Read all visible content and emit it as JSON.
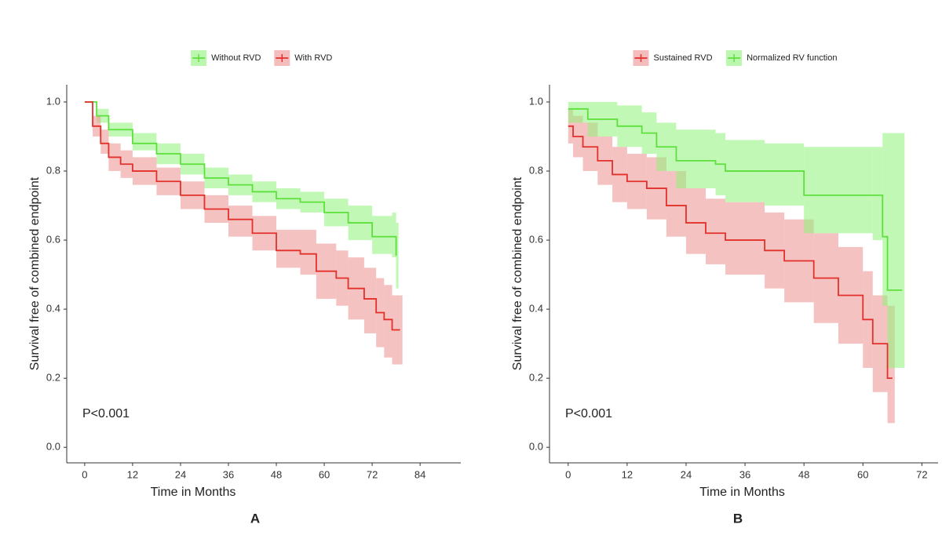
{
  "chart_data": [
    {
      "type": "step",
      "panel_label": "A",
      "x_label": "Time in Months",
      "y_label": "Survival free of combined endpoint",
      "annotation": "P<0.001",
      "legend": "top",
      "xlim": [
        -4.5,
        94.2
      ],
      "ylim": [
        -0.045,
        1.05
      ],
      "xticks": [
        0,
        12,
        24,
        36,
        48,
        60,
        72,
        84
      ],
      "yticks": [
        {
          "value": 0,
          "label": "0.0"
        },
        {
          "value": 0.2,
          "label": "0.2"
        },
        {
          "value": 0.4,
          "label": "0.4"
        },
        {
          "value": 0.6,
          "label": "0.6"
        },
        {
          "value": 0.8,
          "label": "0.8"
        },
        {
          "value": 1,
          "label": "1.0"
        }
      ],
      "series": [
        {
          "name": "Without RVD",
          "color": "#5ee03c",
          "band_color": "#8ff27a",
          "x": [
            0,
            3,
            6,
            12,
            18,
            24,
            30,
            36,
            42,
            48,
            54,
            60,
            66,
            72,
            77,
            78
          ],
          "values": [
            1,
            0.96,
            0.92,
            0.88,
            0.85,
            0.82,
            0.78,
            0.76,
            0.74,
            0.72,
            0.71,
            0.68,
            0.65,
            0.61,
            0.61,
            0.555
          ],
          "lower": [
            1,
            0.94,
            0.9,
            0.86,
            0.82,
            0.79,
            0.75,
            0.73,
            0.71,
            0.69,
            0.68,
            0.64,
            0.6,
            0.56,
            0.55,
            0.46
          ],
          "upper": [
            1,
            0.98,
            0.94,
            0.91,
            0.88,
            0.85,
            0.81,
            0.79,
            0.77,
            0.75,
            0.74,
            0.72,
            0.7,
            0.67,
            0.68,
            0.65
          ]
        },
        {
          "name": "With RVD",
          "color": "#e3302a",
          "band_color": "#ec8f8f",
          "x": [
            0,
            2,
            4,
            6,
            9,
            12,
            18,
            24,
            30,
            36,
            42,
            48,
            54,
            58,
            63,
            66,
            70,
            73,
            75,
            77,
            79
          ],
          "values": [
            1,
            0.93,
            0.88,
            0.84,
            0.82,
            0.8,
            0.77,
            0.73,
            0.69,
            0.66,
            0.62,
            0.57,
            0.56,
            0.51,
            0.49,
            0.46,
            0.43,
            0.39,
            0.37,
            0.34,
            0.34
          ],
          "lower": [
            1,
            0.9,
            0.85,
            0.8,
            0.78,
            0.76,
            0.73,
            0.69,
            0.65,
            0.61,
            0.57,
            0.52,
            0.5,
            0.43,
            0.41,
            0.37,
            0.33,
            0.29,
            0.26,
            0.24,
            0.24
          ],
          "upper": [
            1,
            0.96,
            0.92,
            0.88,
            0.86,
            0.84,
            0.81,
            0.77,
            0.73,
            0.7,
            0.67,
            0.63,
            0.63,
            0.59,
            0.57,
            0.55,
            0.52,
            0.49,
            0.47,
            0.44,
            0.44
          ]
        }
      ]
    },
    {
      "type": "step",
      "panel_label": "B",
      "x_label": "Time in Months",
      "y_label": "Survival free of combined endpoint",
      "annotation": "P<0.001",
      "legend": "top",
      "xlim": [
        -3.8,
        75.3
      ],
      "ylim": [
        -0.045,
        1.05
      ],
      "xticks": [
        0,
        12,
        24,
        36,
        48,
        60,
        72
      ],
      "yticks": [
        {
          "value": 0,
          "label": "0.0"
        },
        {
          "value": 0.2,
          "label": "0.2"
        },
        {
          "value": 0.4,
          "label": "0.4"
        },
        {
          "value": 0.6,
          "label": "0.6"
        },
        {
          "value": 0.8,
          "label": "0.8"
        },
        {
          "value": 1,
          "label": "1.0"
        }
      ],
      "series": [
        {
          "name": "Sustained RVD",
          "color": "#e3302a",
          "band_color": "#ec8f8f",
          "x": [
            0,
            1,
            3,
            6,
            9,
            12,
            16,
            20,
            24,
            28,
            32,
            40,
            44,
            50,
            55,
            60,
            62,
            65,
            66
          ],
          "values": [
            0.93,
            0.9,
            0.87,
            0.83,
            0.79,
            0.77,
            0.75,
            0.7,
            0.65,
            0.62,
            0.6,
            0.57,
            0.54,
            0.49,
            0.44,
            0.37,
            0.3,
            0.2,
            0.2
          ],
          "lower": [
            0.88,
            0.84,
            0.8,
            0.76,
            0.71,
            0.69,
            0.66,
            0.61,
            0.56,
            0.53,
            0.5,
            0.46,
            0.42,
            0.36,
            0.3,
            0.23,
            0.16,
            0.07,
            0.07
          ],
          "upper": [
            0.98,
            0.96,
            0.94,
            0.9,
            0.87,
            0.85,
            0.84,
            0.8,
            0.75,
            0.72,
            0.71,
            0.68,
            0.66,
            0.62,
            0.58,
            0.51,
            0.44,
            0.41,
            0.41
          ]
        },
        {
          "name": "Normalized RV function",
          "color": "#5ee03c",
          "band_color": "#8ff27a",
          "x": [
            0,
            4,
            10,
            15,
            18,
            22,
            30,
            32,
            40,
            48,
            62,
            64,
            65,
            68
          ],
          "values": [
            0.98,
            0.95,
            0.93,
            0.91,
            0.87,
            0.83,
            0.82,
            0.8,
            0.8,
            0.73,
            0.73,
            0.61,
            0.455,
            0.455
          ],
          "lower": [
            0.94,
            0.9,
            0.87,
            0.85,
            0.8,
            0.75,
            0.73,
            0.71,
            0.7,
            0.62,
            0.6,
            0.41,
            0.23,
            0.23
          ],
          "upper": [
            1,
            1,
            0.99,
            0.97,
            0.94,
            0.92,
            0.91,
            0.89,
            0.88,
            0.87,
            0.87,
            0.91,
            0.91,
            0.91
          ]
        }
      ]
    }
  ]
}
